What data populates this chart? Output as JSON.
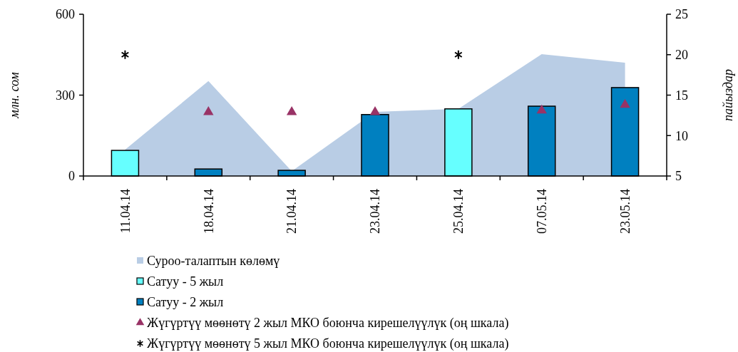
{
  "chart_data": {
    "type": "bar",
    "ylabel": "млн. сом",
    "y2label": "пайыздар",
    "categories": [
      "11.04.14",
      "18.04.14",
      "21.04.14",
      "23.04.14",
      "25.04.14",
      "07.05.14",
      "23.05.14"
    ],
    "series": [
      {
        "name": "Суроо-талаптын көлөмү",
        "type": "area",
        "color": "#b9cde5",
        "values": [
          98,
          352,
          18,
          238,
          249,
          452,
          420
        ]
      },
      {
        "name": "Сатуу - 5 жыл",
        "color": "#66ffff",
        "values": [
          95,
          null,
          null,
          null,
          249,
          null,
          null
        ]
      },
      {
        "name": "Сатуу - 2 жыл",
        "color": "#0080c0",
        "values": [
          null,
          26,
          21,
          228,
          null,
          259,
          328
        ]
      },
      {
        "name": "Жүгүртүү мөөнөтү 2 жыл МКО боюнча кирешелүүлүк (оң шкала)",
        "type": "scatter",
        "axis": "y2",
        "marker": "triangle",
        "color": "#993366",
        "values": [
          null,
          12.9,
          12.9,
          12.9,
          null,
          13.1,
          13.8
        ]
      },
      {
        "name": "Жүгүртүү мөөнөтү 5 жыл МКО боюнча кирешелүүлүк (оң шкала)",
        "type": "scatter",
        "axis": "y2",
        "marker": "cross",
        "color": "#000000",
        "values": [
          20,
          null,
          null,
          null,
          20,
          null,
          null
        ]
      }
    ],
    "ylim": [
      0,
      600
    ],
    "yticks": [
      0,
      300,
      600
    ],
    "y2lim": [
      5,
      25
    ],
    "y2ticks": [
      5,
      10,
      15,
      20,
      25
    ],
    "legend": "bottom",
    "grid": false
  }
}
